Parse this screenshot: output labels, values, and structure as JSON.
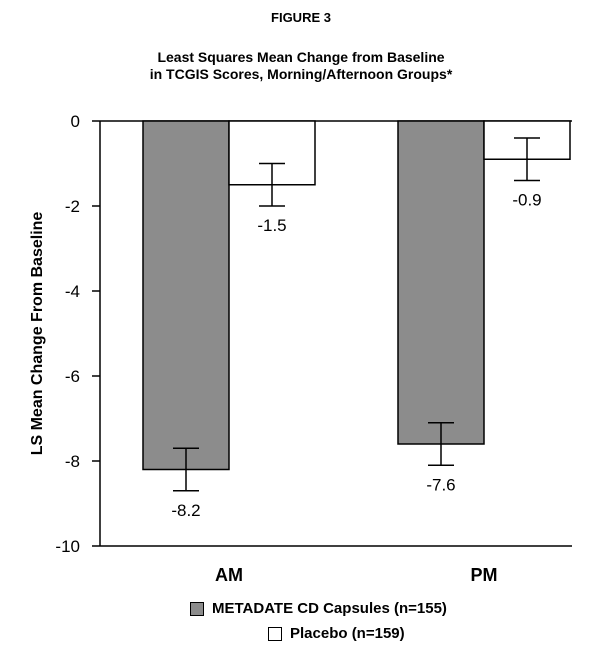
{
  "figure_label": "FIGURE 3",
  "title_line1": "Least Squares Mean Change from Baseline",
  "title_line2": "in TCGIS Scores, Morning/Afternoon Groups*",
  "chart_data": {
    "type": "bar",
    "categories": [
      "AM",
      "PM"
    ],
    "series": [
      {
        "name": "METADATE CD Capsules (n=155)",
        "values": [
          -8.2,
          -7.6
        ],
        "err_low": [
          -8.7,
          -8.1
        ],
        "err_high": [
          -7.7,
          -7.1
        ],
        "color": "#8c8c8c"
      },
      {
        "name": "Placebo (n=159)",
        "values": [
          -1.5,
          -0.9
        ],
        "err_low": [
          -2.0,
          -1.4
        ],
        "err_high": [
          -1.0,
          -0.4
        ],
        "color": "#ffffff"
      }
    ],
    "data_labels": [
      [
        "-8.2",
        "-7.6"
      ],
      [
        "-1.5",
        "-0.9"
      ]
    ],
    "ylabel": "LS Mean Change From Baseline",
    "xlabel": "",
    "ylim": [
      -10,
      0
    ],
    "yticks": [
      0,
      -2,
      -4,
      -6,
      -8,
      -10
    ],
    "ytick_labels": [
      "0",
      "-2",
      "-4",
      "-6",
      "-8",
      "-10"
    ],
    "grid": false,
    "legend": "bottom"
  }
}
